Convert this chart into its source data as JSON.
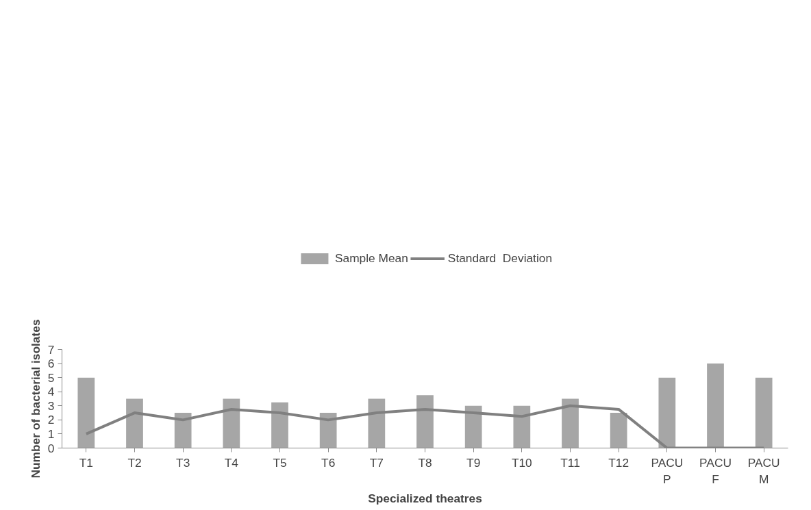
{
  "chart_data": {
    "type": "bar",
    "xlabel": "Specialized theatres",
    "ylabel": "Number of bacterial isolates",
    "categories": [
      "T1",
      "T2",
      "T3",
      "T4",
      "T5",
      "T6",
      "T7",
      "T8",
      "T9",
      "T10",
      "T11",
      "T12",
      "PACU\nP",
      "PACU\nF",
      "PACU\nM"
    ],
    "series": [
      {
        "name": "Sample Mean",
        "color": "#a6a6a6",
        "values": [
          5,
          3.5,
          2.5,
          3.5,
          3.25,
          2.5,
          3.5,
          3.75,
          3,
          3,
          3.5,
          2.5,
          5,
          6,
          5
        ]
      },
      {
        "name": "Standard  Deviation",
        "type": "line",
        "color": "#808080",
        "values": [
          1,
          2.5,
          2,
          2.75,
          2.5,
          2,
          2.5,
          2.75,
          2.5,
          2.25,
          3,
          2.75,
          0,
          0,
          0
        ]
      }
    ],
    "ylim": [
      0,
      7
    ],
    "yticks": [
      0,
      1,
      2,
      3,
      4,
      5,
      6,
      7
    ],
    "grid": false,
    "legend": "top",
    "marker": "none",
    "line_style": "solid"
  }
}
